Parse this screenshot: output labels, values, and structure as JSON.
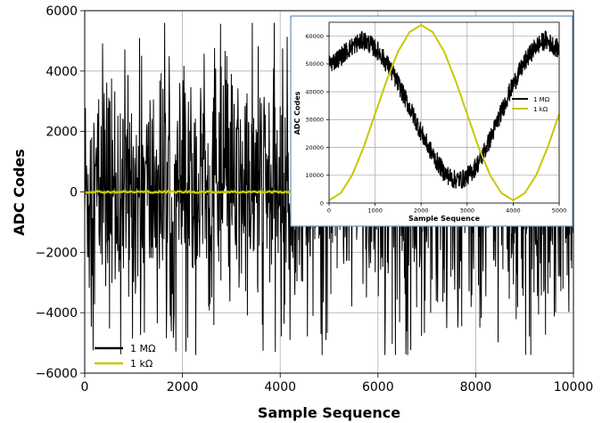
{
  "chart_data": [
    {
      "type": "line",
      "role": "main",
      "xlabel": "Sample Sequence",
      "ylabel": "ADC Codes",
      "xlim": [
        0,
        10000
      ],
      "ylim": [
        -6000,
        6000
      ],
      "xticks": [
        0,
        2000,
        4000,
        6000,
        8000,
        10000
      ],
      "yticks": [
        -6000,
        -4000,
        -2000,
        0,
        2000,
        4000,
        6000
      ],
      "xtick_labels": [
        "0",
        "2000",
        "4000",
        "6000",
        "8000",
        "10000"
      ],
      "ytick_labels": [
        "−6000",
        "−4000",
        "−2000",
        "0",
        "2000",
        "4000",
        "6000"
      ],
      "grid": true,
      "legend_position": "lower-left",
      "series": [
        {
          "name": "1 MΩ",
          "color": "#000000",
          "description": "zero-mean noise",
          "x": [
            0,
            10000
          ],
          "band": {
            "typical_min": -3200,
            "typical_max": 3200,
            "peak_min": -5400,
            "peak_max": 5600
          }
        },
        {
          "name": "1 kΩ",
          "color": "#c8c800",
          "x": [
            0,
            10000
          ],
          "y": [
            0,
            0
          ]
        }
      ]
    },
    {
      "type": "line",
      "role": "inset",
      "xlabel": "Sample Sequence",
      "ylabel": "ADC Codes",
      "xlim": [
        0,
        5000
      ],
      "ylim": [
        0,
        65000
      ],
      "xticks": [
        0,
        1000,
        2000,
        3000,
        4000,
        5000
      ],
      "yticks": [
        0,
        10000,
        20000,
        30000,
        40000,
        50000,
        60000
      ],
      "xtick_labels": [
        "0",
        "1000",
        "2000",
        "3000",
        "4000",
        "5000"
      ],
      "ytick_labels": [
        "0",
        "10000",
        "20000",
        "30000",
        "40000",
        "50000",
        "60000"
      ],
      "grid": true,
      "legend_position": "right",
      "series": [
        {
          "name": "1 MΩ",
          "color": "#000000",
          "x": [
            0,
            200,
            400,
            600,
            750,
            900,
            1100,
            1300,
            1500,
            1700,
            1900,
            2100,
            2300,
            2500,
            2700,
            2900,
            3100,
            3300,
            3500,
            3700,
            3900,
            4100,
            4300,
            4500,
            4700,
            4850,
            5000
          ],
          "y": [
            50000,
            52000,
            55000,
            57500,
            58500,
            57000,
            54000,
            49000,
            43000,
            36000,
            29000,
            22000,
            16000,
            11000,
            8500,
            8500,
            11000,
            16000,
            23000,
            31000,
            39000,
            46000,
            52000,
            56500,
            58500,
            57000,
            55000
          ],
          "band_halfwidth": 3500
        },
        {
          "name": "1 kΩ",
          "color": "#c8c800",
          "x": [
            0,
            250,
            500,
            750,
            1000,
            1250,
            1500,
            1750,
            2000,
            2250,
            2500,
            2750,
            3000,
            3250,
            3500,
            3750,
            4000,
            4250,
            4500,
            4750,
            5000
          ],
          "y": [
            1000,
            3500,
            10000,
            20000,
            32000,
            44000,
            54500,
            61500,
            64000,
            61500,
            54500,
            44000,
            32000,
            20000,
            10000,
            3500,
            1000,
            3500,
            10000,
            20000,
            32000
          ]
        }
      ]
    }
  ]
}
